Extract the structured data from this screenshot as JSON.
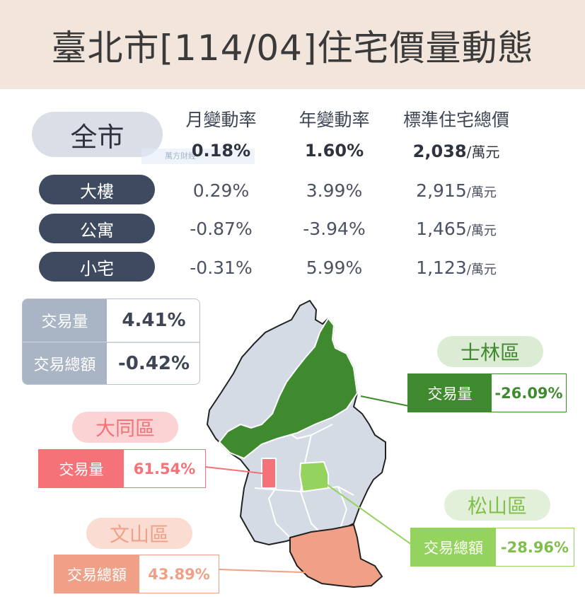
{
  "header": {
    "title": "臺北市[114/04]住宅價量動態"
  },
  "columns": {
    "monthly": "月變動率",
    "yearly": "年變動率",
    "price": "標準住宅總價"
  },
  "unit": "/萬元",
  "city": {
    "label": "全市",
    "monthly": "0.18%",
    "yearly": "1.60%",
    "price": "2,038"
  },
  "types": [
    {
      "label": "大樓",
      "monthly": "0.29%",
      "yearly": "3.99%",
      "price": "2,915"
    },
    {
      "label": "公寓",
      "monthly": "-0.87%",
      "yearly": "-3.94%",
      "price": "1,465"
    },
    {
      "label": "小宅",
      "monthly": "-0.31%",
      "yearly": "5.99%",
      "price": "1,123"
    }
  ],
  "watermark": "萬方財經",
  "stats": [
    {
      "label": "交易量",
      "value": "4.41%"
    },
    {
      "label": "交易總額",
      "value": "-0.42%"
    }
  ],
  "districts": {
    "shilin": {
      "name": "士林區",
      "metric": "交易量",
      "value": "-26.09%",
      "color": "#3f8a2e",
      "light": "#dcebd4"
    },
    "datong": {
      "name": "大同區",
      "metric": "交易量",
      "value": "61.54%",
      "color": "#f47278",
      "light": "#fbd3d4"
    },
    "songshan": {
      "name": "松山區",
      "metric": "交易總額",
      "value": "-28.96%",
      "color": "#94d35d",
      "light": "#e3f0d9"
    },
    "wenshan": {
      "name": "文山區",
      "metric": "交易總額",
      "value": "43.89%",
      "color": "#f0a087",
      "light": "#fbdcd2"
    }
  }
}
